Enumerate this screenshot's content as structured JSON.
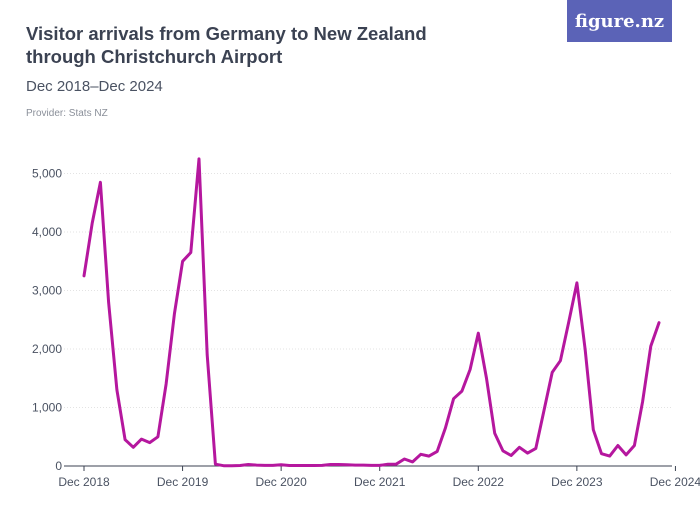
{
  "header": {
    "title": "Visitor arrivals from Germany to New Zealand through Christchurch Airport",
    "subtitle": "Dec 2018–Dec 2024",
    "provider": "Provider: Stats NZ",
    "logo_text": "figure.nz"
  },
  "colors": {
    "line": "#b5179e",
    "grid": "#e3e3e3",
    "axis": "#3b4252",
    "logo_bg": "#5b63b7"
  },
  "chart_data": {
    "type": "line",
    "title": "Visitor arrivals from Germany to New Zealand through Christchurch Airport",
    "subtitle": "Dec 2018–Dec 2024",
    "xlabel": "",
    "ylabel": "",
    "ylim": [
      0,
      5250
    ],
    "y_ticks": [
      0,
      1000,
      2000,
      3000,
      4000,
      5000
    ],
    "y_tick_labels": [
      "0",
      "1,000",
      "2,000",
      "3,000",
      "4,000",
      "5,000"
    ],
    "x_ticks": [
      0,
      12,
      24,
      36,
      48,
      60,
      72
    ],
    "x_tick_labels": [
      "Dec 2018",
      "Dec 2019",
      "Dec 2020",
      "Dec 2021",
      "Dec 2022",
      "Dec 2023",
      "Dec 2024"
    ],
    "grid": true,
    "legend": "none",
    "series": [
      {
        "values": [
          3250,
          4150,
          4850,
          2800,
          1300,
          450,
          320,
          460,
          400,
          500,
          1400,
          2600,
          3500,
          3650,
          5250,
          1900,
          30,
          5,
          5,
          8,
          25,
          15,
          10,
          10,
          20,
          8,
          8,
          8,
          8,
          10,
          25,
          25,
          20,
          15,
          15,
          10,
          10,
          30,
          30,
          120,
          70,
          200,
          170,
          250,
          650,
          1150,
          1280,
          1650,
          2270,
          1500,
          560,
          260,
          180,
          320,
          220,
          300,
          950,
          1600,
          1800,
          2450,
          3130,
          2000,
          620,
          210,
          170,
          350,
          190,
          350,
          1100,
          2050,
          2450
        ]
      }
    ]
  }
}
